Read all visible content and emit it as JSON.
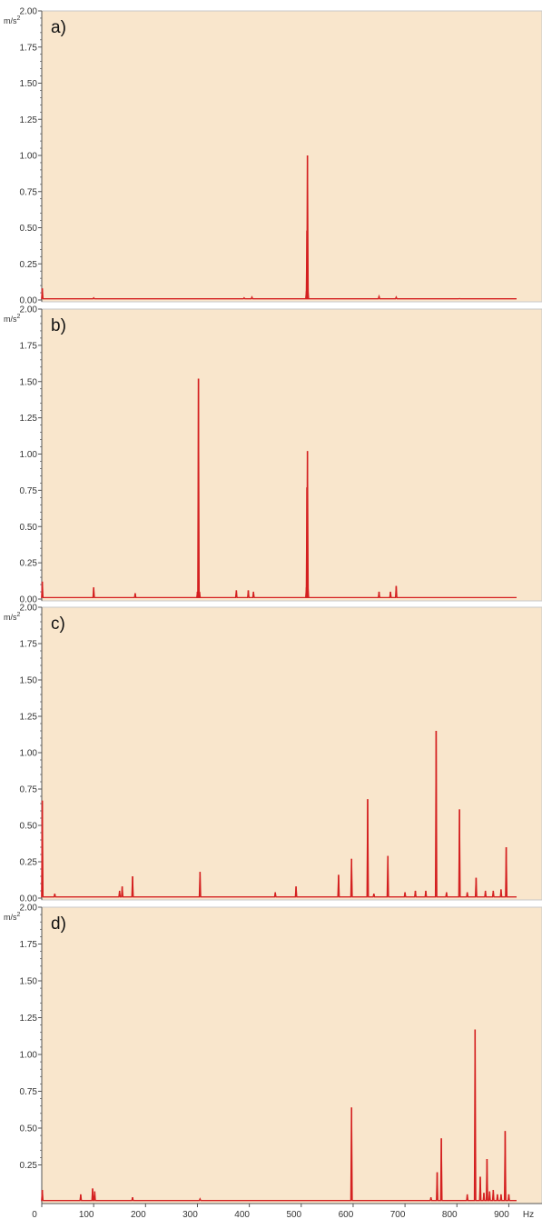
{
  "colors": {
    "plot_background": "#f9e6cc",
    "spectrum": "#d42020",
    "axis": "#555555",
    "grid_border": "#c8c8c8"
  },
  "chart_data": [
    {
      "type": "line",
      "panel_label": "a)",
      "ylabel": "m/s",
      "ylabel_superscript": "2",
      "xlabel": "",
      "xlim": [
        0,
        915
      ],
      "ylim": [
        0,
        2.0
      ],
      "yticks": [
        "0.00",
        "0.25",
        "0.50",
        "0.75",
        "1.00",
        "1.25",
        "1.50",
        "1.75",
        "2.00"
      ],
      "baseline": 0.008,
      "peaks": [
        {
          "x": 1,
          "y": 0.08
        },
        {
          "x": 100,
          "y": 0.015
        },
        {
          "x": 390,
          "y": 0.015
        },
        {
          "x": 405,
          "y": 0.02
        },
        {
          "x": 510,
          "y": 0.06
        },
        {
          "x": 511,
          "y": 0.48
        },
        {
          "x": 512,
          "y": 1.0
        },
        {
          "x": 513,
          "y": 0.08
        },
        {
          "x": 650,
          "y": 0.025
        },
        {
          "x": 683,
          "y": 0.02
        },
        {
          "x": 805,
          "y": 0.01
        }
      ]
    },
    {
      "type": "line",
      "panel_label": "b)",
      "ylabel": "m/s",
      "ylabel_superscript": "2",
      "xlabel": "",
      "xlim": [
        0,
        915
      ],
      "ylim": [
        0,
        2.0
      ],
      "yticks": [
        "0.00",
        "0.25",
        "0.50",
        "0.75",
        "1.00",
        "1.25",
        "1.50",
        "1.75",
        "2.00"
      ],
      "baseline": 0.01,
      "peaks": [
        {
          "x": 1,
          "y": 0.12
        },
        {
          "x": 100,
          "y": 0.08
        },
        {
          "x": 180,
          "y": 0.04
        },
        {
          "x": 300,
          "y": 0.05
        },
        {
          "x": 302,
          "y": 1.52
        },
        {
          "x": 304,
          "y": 0.05
        },
        {
          "x": 375,
          "y": 0.06
        },
        {
          "x": 398,
          "y": 0.06
        },
        {
          "x": 408,
          "y": 0.05
        },
        {
          "x": 510,
          "y": 0.08
        },
        {
          "x": 511,
          "y": 0.77
        },
        {
          "x": 512,
          "y": 1.02
        },
        {
          "x": 513,
          "y": 0.1
        },
        {
          "x": 650,
          "y": 0.05
        },
        {
          "x": 672,
          "y": 0.05
        },
        {
          "x": 683,
          "y": 0.09
        }
      ]
    },
    {
      "type": "line",
      "panel_label": "c)",
      "ylabel": "m/s",
      "ylabel_superscript": "2",
      "xlabel": "",
      "xlim": [
        0,
        915
      ],
      "ylim": [
        0,
        2.0
      ],
      "yticks": [
        "0.00",
        "0.25",
        "0.50",
        "0.75",
        "1.00",
        "1.25",
        "1.50",
        "1.75",
        "2.00"
      ],
      "baseline": 0.008,
      "peaks": [
        {
          "x": 1,
          "y": 0.67
        },
        {
          "x": 25,
          "y": 0.03
        },
        {
          "x": 150,
          "y": 0.05
        },
        {
          "x": 155,
          "y": 0.08
        },
        {
          "x": 175,
          "y": 0.15
        },
        {
          "x": 305,
          "y": 0.18
        },
        {
          "x": 450,
          "y": 0.04
        },
        {
          "x": 490,
          "y": 0.08
        },
        {
          "x": 572,
          "y": 0.16
        },
        {
          "x": 597,
          "y": 0.27
        },
        {
          "x": 628,
          "y": 0.68
        },
        {
          "x": 640,
          "y": 0.03
        },
        {
          "x": 667,
          "y": 0.29
        },
        {
          "x": 700,
          "y": 0.04
        },
        {
          "x": 720,
          "y": 0.05
        },
        {
          "x": 740,
          "y": 0.05
        },
        {
          "x": 760,
          "y": 1.15
        },
        {
          "x": 780,
          "y": 0.04
        },
        {
          "x": 805,
          "y": 0.61
        },
        {
          "x": 820,
          "y": 0.04
        },
        {
          "x": 837,
          "y": 0.14
        },
        {
          "x": 855,
          "y": 0.05
        },
        {
          "x": 870,
          "y": 0.05
        },
        {
          "x": 885,
          "y": 0.06
        },
        {
          "x": 895,
          "y": 0.35
        }
      ]
    },
    {
      "type": "line",
      "panel_label": "d)",
      "ylabel": "m/s",
      "ylabel_superscript": "2",
      "xlabel": "Hz",
      "xlim": [
        0,
        915
      ],
      "ylim": [
        0,
        2.0
      ],
      "yticks": [
        "0.25",
        "0.50",
        "0.75",
        "1.00",
        "1.25",
        "1.50",
        "1.75",
        "2.00"
      ],
      "xticks": [
        "0",
        "100",
        "200",
        "300",
        "400",
        "500",
        "600",
        "700",
        "800",
        "900"
      ],
      "baseline": 0.008,
      "peaks": [
        {
          "x": 1,
          "y": 0.08
        },
        {
          "x": 75,
          "y": 0.05
        },
        {
          "x": 98,
          "y": 0.09
        },
        {
          "x": 102,
          "y": 0.07
        },
        {
          "x": 175,
          "y": 0.03
        },
        {
          "x": 305,
          "y": 0.02
        },
        {
          "x": 597,
          "y": 0.64
        },
        {
          "x": 750,
          "y": 0.03
        },
        {
          "x": 762,
          "y": 0.2
        },
        {
          "x": 770,
          "y": 0.43
        },
        {
          "x": 820,
          "y": 0.05
        },
        {
          "x": 835,
          "y": 1.17
        },
        {
          "x": 845,
          "y": 0.17
        },
        {
          "x": 852,
          "y": 0.06
        },
        {
          "x": 858,
          "y": 0.29
        },
        {
          "x": 863,
          "y": 0.07
        },
        {
          "x": 870,
          "y": 0.08
        },
        {
          "x": 878,
          "y": 0.05
        },
        {
          "x": 885,
          "y": 0.05
        },
        {
          "x": 893,
          "y": 0.48
        },
        {
          "x": 900,
          "y": 0.05
        }
      ]
    }
  ]
}
